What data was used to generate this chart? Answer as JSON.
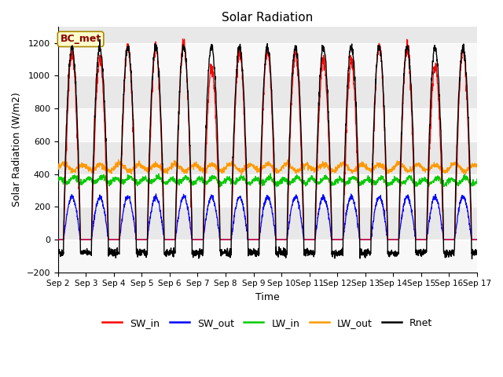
{
  "title": "Solar Radiation",
  "xlabel": "Time",
  "ylabel": "Solar Radiation (W/m2)",
  "ylim": [
    -200,
    1300
  ],
  "yticks": [
    -200,
    0,
    200,
    400,
    600,
    800,
    1000,
    1200
  ],
  "xtick_labels": [
    "Sep 2",
    "Sep 3",
    "Sep 4",
    "Sep 5",
    "Sep 6",
    "Sep 7",
    "Sep 8",
    "Sep 9",
    "Sep 10",
    "Sep 11",
    "Sep 12",
    "Sep 13",
    "Sep 14",
    "Sep 15",
    "Sep 16",
    "Sep 17"
  ],
  "colors": {
    "SW_in": "#ff0000",
    "SW_out": "#0000ff",
    "LW_in": "#00cc00",
    "LW_out": "#ff9900",
    "Rnet": "#000000"
  },
  "annotation_text": "BC_met",
  "annotation_bg": "#ffffcc",
  "annotation_border": "#aa8800",
  "annotation_text_color": "#880000",
  "n_days": 15,
  "pts_per_day": 144,
  "SW_in_peak": 1150,
  "SW_out_peak": 260,
  "LW_in_mean": 360,
  "LW_out_mean": 440,
  "Rnet_peak": 1175,
  "Rnet_night": -80,
  "background_color": "#ffffff",
  "axes_bg": "#e8e8e8",
  "grid_color": "#ffffff"
}
